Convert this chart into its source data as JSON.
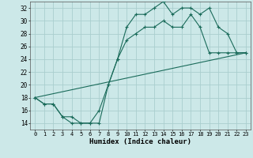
{
  "xlabel": "Humidex (Indice chaleur)",
  "bg_color": "#cce8e8",
  "grid_color": "#aacece",
  "line_color": "#1a6b5a",
  "xlim": [
    -0.5,
    23.5
  ],
  "ylim": [
    13.0,
    33.0
  ],
  "yticks": [
    14,
    16,
    18,
    20,
    22,
    24,
    26,
    28,
    30,
    32
  ],
  "xticks": [
    0,
    1,
    2,
    3,
    4,
    5,
    6,
    7,
    8,
    9,
    10,
    11,
    12,
    13,
    14,
    15,
    16,
    17,
    18,
    19,
    20,
    21,
    22,
    23
  ],
  "line1_x": [
    0,
    1,
    2,
    3,
    4,
    5,
    6,
    7,
    8,
    9,
    10,
    11,
    12,
    13,
    14,
    15,
    16,
    17,
    18,
    19,
    20,
    21,
    22,
    23
  ],
  "line1_y": [
    18,
    17,
    17,
    15,
    15,
    14,
    14,
    14,
    20,
    24,
    29,
    31,
    31,
    32,
    33,
    31,
    32,
    32,
    31,
    32,
    29,
    28,
    25,
    25
  ],
  "line2_x": [
    0,
    1,
    2,
    3,
    4,
    5,
    6,
    7,
    8,
    9,
    10,
    11,
    12,
    13,
    14,
    15,
    16,
    17,
    18,
    19,
    20,
    21,
    22,
    23
  ],
  "line2_y": [
    18,
    17,
    17,
    15,
    14,
    14,
    14,
    16,
    20,
    24,
    27,
    28,
    29,
    29,
    30,
    29,
    29,
    31,
    29,
    25,
    25,
    25,
    25,
    25
  ],
  "line3_x": [
    0,
    23
  ],
  "line3_y": [
    18,
    25
  ]
}
